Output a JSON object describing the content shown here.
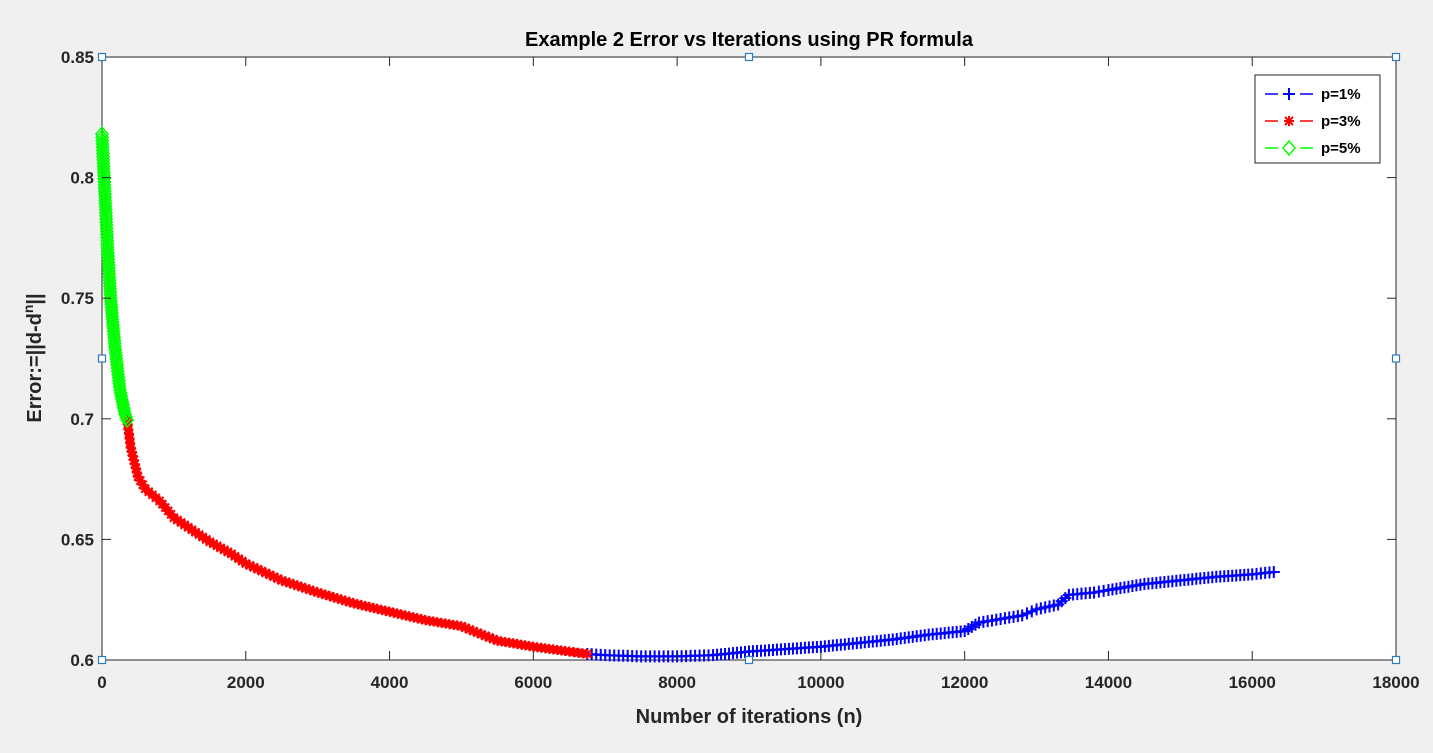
{
  "chart_data": {
    "type": "line",
    "title": "Example 2 Error vs Iterations using PR formula",
    "xlabel": "Number of iterations (n)",
    "ylabel_main": "Error:=||d-d",
    "ylabel_sup": "n",
    "ylabel_tail": "||",
    "xlim": [
      0,
      18000
    ],
    "ylim": [
      0.6,
      0.85
    ],
    "xticks": [
      0,
      2000,
      4000,
      6000,
      8000,
      10000,
      12000,
      14000,
      16000,
      18000
    ],
    "xtick_labels": [
      "0",
      "2000",
      "4000",
      "6000",
      "8000",
      "10000",
      "12000",
      "14000",
      "16000",
      "18000"
    ],
    "yticks": [
      0.6,
      0.65,
      0.7,
      0.75,
      0.8,
      0.85
    ],
    "ytick_labels": [
      "0.6",
      "0.65",
      "0.7",
      "0.75",
      "0.8",
      "0.85"
    ],
    "grid": false,
    "legend_position": "top-right",
    "series": [
      {
        "name": "p=1%",
        "color": "#0000ff",
        "marker": "+",
        "x": [
          6750,
          7000,
          7500,
          8000,
          8500,
          9000,
          9500,
          10000,
          10500,
          11000,
          11500,
          12000,
          12200,
          12500,
          12800,
          13000,
          13300,
          13450,
          13800,
          14000,
          14500,
          15000,
          15500,
          16000,
          16300
        ],
        "y": [
          0.6025,
          0.602,
          0.6015,
          0.6015,
          0.602,
          0.6035,
          0.6045,
          0.6055,
          0.607,
          0.6085,
          0.6105,
          0.612,
          0.6155,
          0.617,
          0.6185,
          0.621,
          0.623,
          0.627,
          0.628,
          0.629,
          0.6315,
          0.633,
          0.6345,
          0.6355,
          0.6365
        ]
      },
      {
        "name": "p=3%",
        "color": "#ff0000",
        "marker": "*",
        "x": [
          350,
          400,
          500,
          600,
          800,
          1000,
          1200,
          1500,
          1800,
          2000,
          2500,
          3000,
          3500,
          4000,
          4500,
          5000,
          5500,
          6000,
          6500,
          6750
        ],
        "y": [
          0.6995,
          0.688,
          0.676,
          0.671,
          0.666,
          0.659,
          0.655,
          0.649,
          0.644,
          0.64,
          0.633,
          0.628,
          0.6235,
          0.62,
          0.6165,
          0.614,
          0.608,
          0.6055,
          0.6035,
          0.6025
        ]
      },
      {
        "name": "p=5%",
        "color": "#00ff00",
        "marker": "diamond",
        "x": [
          0,
          20,
          50,
          80,
          120,
          180,
          250,
          320,
          350
        ],
        "y": [
          0.818,
          0.806,
          0.788,
          0.77,
          0.75,
          0.73,
          0.712,
          0.702,
          0.6995
        ]
      }
    ]
  }
}
